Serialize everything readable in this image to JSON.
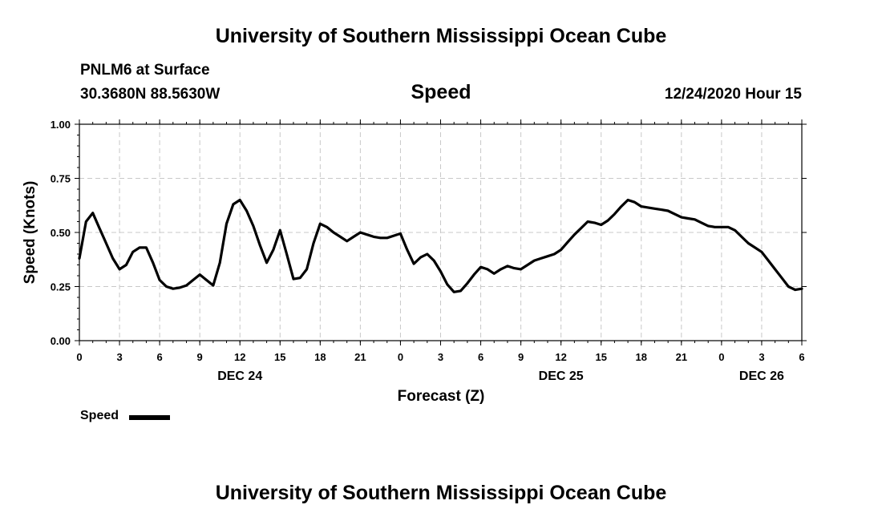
{
  "page": {
    "header_title": "University of Southern Mississippi Ocean Cube",
    "footer_title": "University of Southern Mississippi Ocean Cube",
    "station": "PNLM6 at Surface",
    "location": "30.3680N 88.5630W",
    "variable": "Speed",
    "forecast_time": "12/24/2020 Hour 15"
  },
  "chart_data": {
    "type": "line",
    "title": "Speed",
    "xlabel": "Forecast (Z)",
    "ylabel": "Speed (Knots)",
    "ylim": [
      0,
      1.0
    ],
    "xlim": [
      0,
      54
    ],
    "grid": true,
    "y_ticks": [
      {
        "value": 0,
        "label": "0.00"
      },
      {
        "value": 0.25,
        "label": "0.25"
      },
      {
        "value": 0.5,
        "label": "0.50"
      },
      {
        "value": 0.75,
        "label": "0.75"
      },
      {
        "value": 1.0,
        "label": "1.00"
      }
    ],
    "x_ticks": [
      {
        "value": 0,
        "label": "0"
      },
      {
        "value": 3,
        "label": "3"
      },
      {
        "value": 6,
        "label": "6"
      },
      {
        "value": 9,
        "label": "9"
      },
      {
        "value": 12,
        "label": "12"
      },
      {
        "value": 15,
        "label": "15"
      },
      {
        "value": 18,
        "label": "18"
      },
      {
        "value": 21,
        "label": "21"
      },
      {
        "value": 24,
        "label": "0"
      },
      {
        "value": 27,
        "label": "3"
      },
      {
        "value": 30,
        "label": "6"
      },
      {
        "value": 33,
        "label": "9"
      },
      {
        "value": 36,
        "label": "12"
      },
      {
        "value": 39,
        "label": "15"
      },
      {
        "value": 42,
        "label": "18"
      },
      {
        "value": 45,
        "label": "21"
      },
      {
        "value": 48,
        "label": "0"
      },
      {
        "value": 51,
        "label": "3"
      },
      {
        "value": 54,
        "label": "6"
      }
    ],
    "day_labels": [
      {
        "value": 12,
        "label": "DEC 24"
      },
      {
        "value": 36,
        "label": "DEC 25"
      },
      {
        "value": 51,
        "label": "DEC 26"
      }
    ],
    "series": [
      {
        "name": "Speed",
        "color": "#000000",
        "x": [
          0,
          0.5,
          1,
          1.5,
          2,
          2.5,
          3,
          3.5,
          4,
          4.5,
          5,
          5.5,
          6,
          6.5,
          7,
          7.5,
          8,
          8.5,
          9,
          9.5,
          10,
          10.5,
          11,
          11.5,
          12,
          12.5,
          13,
          13.5,
          14,
          14.5,
          15,
          15.5,
          16,
          16.5,
          17,
          17.5,
          18,
          18.5,
          19,
          19.5,
          20,
          20.5,
          21,
          21.5,
          22,
          22.5,
          23,
          23.5,
          24,
          24.5,
          25,
          25.5,
          26,
          26.5,
          27,
          27.5,
          28,
          28.5,
          29,
          29.5,
          30,
          30.5,
          31,
          31.5,
          32,
          32.5,
          33,
          33.5,
          34,
          34.5,
          35,
          35.5,
          36,
          36.5,
          37,
          37.5,
          38,
          38.5,
          39,
          39.5,
          40,
          40.5,
          41,
          41.5,
          42,
          42.5,
          43,
          43.5,
          44,
          44.5,
          45,
          45.5,
          46,
          46.5,
          47,
          47.5,
          48,
          48.5,
          49,
          49.5,
          50,
          50.5,
          51,
          51.5,
          52,
          52.5,
          53,
          53.5,
          54
        ],
        "values": [
          0.38,
          0.55,
          0.59,
          0.52,
          0.45,
          0.38,
          0.33,
          0.35,
          0.41,
          0.43,
          0.43,
          0.36,
          0.28,
          0.25,
          0.24,
          0.245,
          0.255,
          0.28,
          0.305,
          0.28,
          0.255,
          0.36,
          0.54,
          0.63,
          0.65,
          0.6,
          0.53,
          0.44,
          0.36,
          0.42,
          0.51,
          0.4,
          0.285,
          0.29,
          0.33,
          0.45,
          0.54,
          0.525,
          0.5,
          0.48,
          0.46,
          0.48,
          0.5,
          0.49,
          0.48,
          0.475,
          0.475,
          0.485,
          0.495,
          0.42,
          0.355,
          0.385,
          0.4,
          0.37,
          0.32,
          0.26,
          0.225,
          0.23,
          0.265,
          0.305,
          0.34,
          0.33,
          0.31,
          0.33,
          0.345,
          0.335,
          0.33,
          0.35,
          0.37,
          0.38,
          0.39,
          0.4,
          0.42,
          0.455,
          0.49,
          0.52,
          0.55,
          0.545,
          0.535,
          0.555,
          0.585,
          0.62,
          0.65,
          0.64,
          0.62,
          0.615,
          0.61,
          0.605,
          0.6,
          0.585,
          0.57,
          0.565,
          0.56,
          0.545,
          0.53,
          0.525,
          0.525,
          0.525,
          0.51,
          0.48,
          0.45,
          0.43,
          0.41,
          0.37,
          0.33,
          0.29,
          0.25,
          0.235,
          0.24
        ]
      }
    ],
    "legend": {
      "label": "Speed",
      "placement": "bottom-left"
    }
  }
}
